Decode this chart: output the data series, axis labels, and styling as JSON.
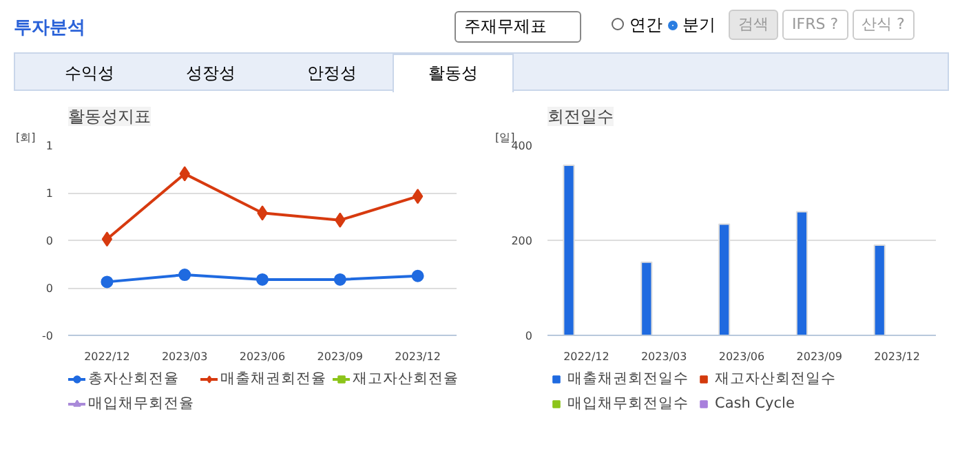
{
  "chart_data": [
    {
      "type": "line",
      "title": "활동성지표",
      "ylabel": "[회]",
      "annotations": [
        "투자분석",
        "주재무제표",
        "연간",
        "분기",
        "검색",
        "IFRS ?",
        "산식 ?",
        "수익성",
        "성장성",
        "안정성",
        "활동성"
      ],
      "categories": [
        "2022/12",
        "2023/03",
        "2023/06",
        "2023/09",
        "2023/12"
      ],
      "ylim": [
        -0.4,
        1.2
      ],
      "yticks": [
        {
          "value": -0.4,
          "label": "-0"
        },
        {
          "value": 0,
          "label": "0"
        },
        {
          "value": 0.4,
          "label": "0"
        },
        {
          "value": 0.8,
          "label": "1"
        },
        {
          "value": 1.2,
          "label": "1"
        }
      ],
      "grid": "y",
      "legend": "bottom",
      "line_style": "solid",
      "series": [
        {
          "name": "총자산회전율",
          "color": "#1f6ae0",
          "marker": "circle",
          "values": [
            0.05,
            0.11,
            0.07,
            0.07,
            0.1
          ]
        },
        {
          "name": "매출채권회전율",
          "color": "#d73a0f",
          "marker": "diamond",
          "values": [
            0.41,
            0.96,
            0.63,
            0.57,
            0.77
          ]
        },
        {
          "name": "재고자산회전율",
          "color": "#8cc41a",
          "marker": "square",
          "values": [
            null,
            null,
            null,
            null,
            null
          ]
        },
        {
          "name": "매입채무회전율",
          "color": "#a98ad9",
          "marker": "triangle",
          "values": [
            null,
            null,
            null,
            null,
            null
          ]
        }
      ]
    },
    {
      "type": "bar",
      "title": "회전일수",
      "ylabel": "[일]",
      "categories": [
        "2022/12",
        "2023/03",
        "2023/06",
        "2023/09",
        "2023/12"
      ],
      "ylim": [
        0,
        400
      ],
      "yticks": [
        0,
        200,
        400
      ],
      "grid": "y",
      "legend": "bottom",
      "series": [
        {
          "name": "매출채권회전일수",
          "color": "#1f6ae0",
          "values": [
            358,
            154,
            234,
            260,
            190
          ]
        },
        {
          "name": "재고자산회전일수",
          "color": "#d33a0c",
          "values": [
            null,
            null,
            null,
            null,
            null
          ]
        },
        {
          "name": "매입채무회전일수",
          "color": "#8cc41a",
          "values": [
            null,
            null,
            null,
            null,
            null
          ]
        },
        {
          "name": "Cash Cycle",
          "color": "#a87fdc",
          "values": [
            null,
            null,
            null,
            null,
            null
          ]
        }
      ]
    }
  ]
}
